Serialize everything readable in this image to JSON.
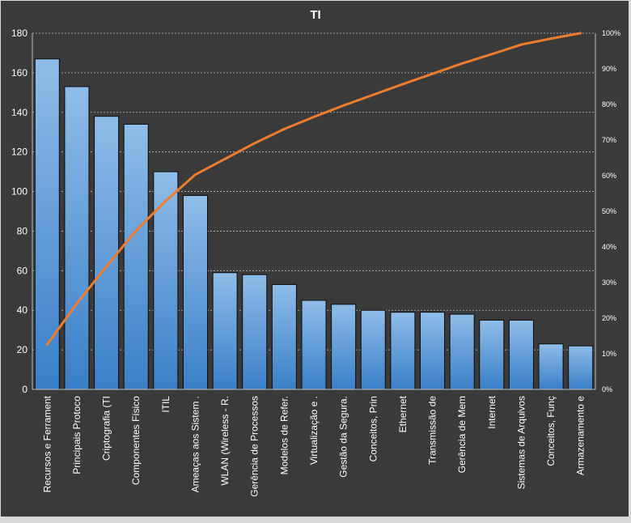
{
  "colors": {
    "outer_frame": "#d9d9d9",
    "background": "#3a3a3a",
    "bar_fill_top": "#8fbde8",
    "bar_fill_bottom": "#3a7fc8",
    "bar_stroke": "#0b0b0b",
    "line": "#ed7d31",
    "gridline": "#bfbfbf",
    "text": "#ffffff"
  },
  "chart_data": {
    "type": "bar",
    "title": "TI",
    "categories": [
      "Recursos e Ferrament",
      "Principais Protoco",
      "Criptografia (TI",
      "Componentes Físico",
      "ITIL",
      "Ameaças aos Sistem .",
      "WLAN (Wireless - R.",
      "Gerência de Processos",
      "Modelos de Refer.",
      "Virtualização e .",
      "Gestão da Segura.",
      "Conceitos, Prin",
      "Ethernet",
      "Transmissão de",
      "Gerência de Mem",
      "Internet",
      "Sistemas de Arquivos",
      "Conceitos, Funç",
      "Armazenamento e"
    ],
    "series": [
      {
        "type": "bar",
        "axis": "left",
        "values": [
          167,
          153,
          138,
          134,
          110,
          98,
          59,
          58,
          53,
          45,
          43,
          40,
          39,
          39,
          38,
          35,
          35,
          23,
          22
        ]
      },
      {
        "type": "line",
        "axis": "right",
        "values": [
          12.6,
          24.1,
          34.5,
          44.6,
          52.9,
          60.3,
          64.7,
          69.1,
          73.1,
          76.5,
          79.7,
          82.7,
          85.7,
          88.6,
          91.5,
          94.1,
          96.8,
          98.5,
          100.0
        ]
      }
    ],
    "y_left": {
      "ylim": [
        0,
        180
      ],
      "ticks": [
        0,
        20,
        40,
        60,
        80,
        100,
        120,
        140,
        160,
        180
      ]
    },
    "y_right": {
      "ylim": [
        0,
        100
      ],
      "ticks": [
        0,
        10,
        20,
        30,
        40,
        50,
        60,
        70,
        80,
        90,
        100
      ],
      "tick_labels": [
        "0%",
        "10%",
        "20%",
        "30%",
        "40%",
        "50%",
        "60%",
        "70%",
        "80%",
        "90%",
        "100%"
      ]
    },
    "grid": "horizontal dashed",
    "legend": "none"
  }
}
